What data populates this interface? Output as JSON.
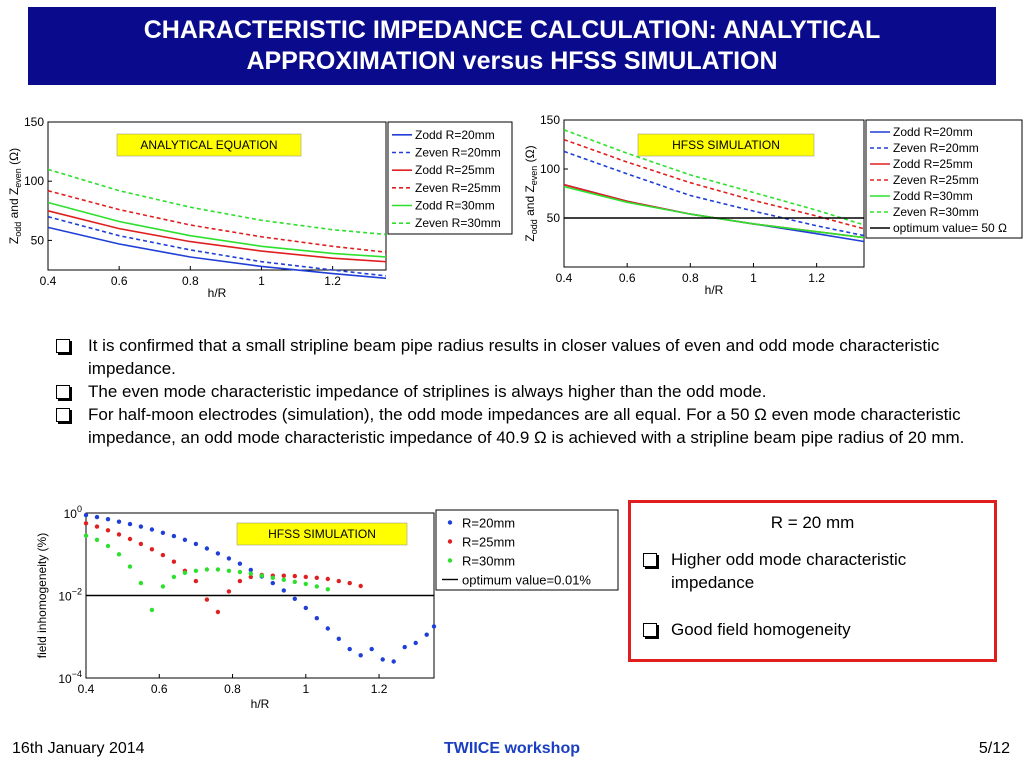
{
  "header": {
    "title_line1": "CHARACTERISTIC IMPEDANCE CALCULATION: ANALYTICAL",
    "title_line2": "APPROXIMATION versus HFSS SIMULATION"
  },
  "bullets": [
    "It is confirmed that a small stripline beam pipe radius results in closer values of even and odd mode characteristic impedance.",
    "The even mode characteristic impedance of striplines is always higher than the odd mode.",
    "For half-moon electrodes (simulation), the odd mode impedances are all equal. For a 50 Ω even mode characteristic impedance, an odd mode characteristic impedance of 40.9 Ω is achieved with a stripline beam pipe radius of 20 mm."
  ],
  "summary_box": {
    "heading": "R = 20 mm",
    "items": [
      "Higher odd mode characteristic impedance",
      "Good field homogeneity"
    ]
  },
  "footer": {
    "date": "16th January 2014",
    "event": "TWIICE workshop",
    "page": "5/12"
  },
  "colors": {
    "title_bg": "#0a0a8c",
    "blue": "#1f3fd6",
    "red": "#e02020",
    "green": "#2ee02e",
    "box_border": "#e01e1e",
    "footer_event": "#1a3ec0"
  },
  "chart_data": [
    {
      "type": "line",
      "annotation": "ANALYTICAL EQUATION",
      "xlabel": "h/R",
      "ylabel_main": "Z",
      "ylabel_sub1": "odd",
      "ylabel_and": " and Z",
      "ylabel_sub2": "even",
      "ylabel_unit": " (Ω)",
      "xlim": [
        0.4,
        1.35
      ],
      "ylim": [
        25,
        150
      ],
      "xticks": [
        0.4,
        0.6,
        0.8,
        1,
        1.2
      ],
      "xtick_labels": [
        "0.4",
        "0.6",
        "0.8",
        "1",
        "1.2"
      ],
      "yticks": [
        50,
        100,
        150
      ],
      "ytick_labels": [
        "50",
        "100",
        "150"
      ],
      "legend": "right",
      "series": [
        {
          "name": "Zodd R=20mm",
          "color": "#1f3fd6",
          "dash": false,
          "x": [
            0.4,
            0.6,
            0.8,
            1.0,
            1.2,
            1.35
          ],
          "y": [
            61,
            47,
            36,
            28,
            22,
            18
          ]
        },
        {
          "name": "Zeven R=20mm",
          "color": "#1f3fd6",
          "dash": true,
          "x": [
            0.4,
            0.6,
            0.8,
            1.0,
            1.2,
            1.35
          ],
          "y": [
            70,
            54,
            42,
            32,
            25,
            20
          ]
        },
        {
          "name": "Zodd R=25mm",
          "color": "#e02020",
          "dash": false,
          "x": [
            0.4,
            0.6,
            0.8,
            1.0,
            1.2,
            1.35
          ],
          "y": [
            75,
            60,
            49,
            41,
            35,
            32
          ]
        },
        {
          "name": "Zeven R=25mm",
          "color": "#e02020",
          "dash": true,
          "x": [
            0.4,
            0.6,
            0.8,
            1.0,
            1.2,
            1.35
          ],
          "y": [
            92,
            76,
            63,
            53,
            45,
            40
          ]
        },
        {
          "name": "Zodd R=30mm",
          "color": "#2ee02e",
          "dash": false,
          "x": [
            0.4,
            0.6,
            0.8,
            1.0,
            1.2,
            1.35
          ],
          "y": [
            82,
            66,
            54,
            45,
            39,
            36
          ]
        },
        {
          "name": "Zeven R=30mm",
          "color": "#2ee02e",
          "dash": true,
          "x": [
            0.4,
            0.6,
            0.8,
            1.0,
            1.2,
            1.35
          ],
          "y": [
            110,
            92,
            78,
            67,
            59,
            55
          ]
        }
      ]
    },
    {
      "type": "line",
      "annotation": "HFSS SIMULATION",
      "xlabel": "h/R",
      "ylabel_main": "Z",
      "ylabel_sub1": "odd",
      "ylabel_and": " and Z",
      "ylabel_sub2": "even",
      "ylabel_unit": " (Ω)",
      "xlim": [
        0.4,
        1.35
      ],
      "ylim": [
        0,
        150
      ],
      "xticks": [
        0.4,
        0.6,
        0.8,
        1,
        1.2
      ],
      "xtick_labels": [
        "0.4",
        "0.6",
        "0.8",
        "1",
        "1.2"
      ],
      "yticks": [
        0,
        50,
        100,
        150
      ],
      "ytick_labels": [
        "",
        "50",
        "100",
        "150"
      ],
      "legend": "right",
      "series": [
        {
          "name": "Zodd R=20mm",
          "color": "#1f3fd6",
          "dash": false,
          "x": [
            0.4,
            0.6,
            0.8,
            1.0,
            1.2,
            1.35
          ],
          "y": [
            84,
            67,
            54,
            44,
            34,
            26
          ]
        },
        {
          "name": "Zeven R=20mm",
          "color": "#1f3fd6",
          "dash": true,
          "x": [
            0.4,
            0.6,
            0.8,
            1.0,
            1.2,
            1.35
          ],
          "y": [
            118,
            95,
            73,
            57,
            42,
            32
          ]
        },
        {
          "name": "Zodd R=25mm",
          "color": "#e02020",
          "dash": false,
          "x": [
            0.4,
            0.6,
            0.8,
            1.0,
            1.2,
            1.35
          ],
          "y": [
            84,
            67,
            54,
            44,
            36,
            30
          ]
        },
        {
          "name": "Zeven R=25mm",
          "color": "#e02020",
          "dash": true,
          "x": [
            0.4,
            0.6,
            0.8,
            1.0,
            1.2,
            1.35
          ],
          "y": [
            130,
            107,
            86,
            68,
            52,
            39
          ]
        },
        {
          "name": "Zodd R=30mm",
          "color": "#2ee02e",
          "dash": false,
          "x": [
            0.4,
            0.6,
            0.8,
            1.0,
            1.2,
            1.35
          ],
          "y": [
            82,
            66,
            54,
            44,
            36,
            30
          ]
        },
        {
          "name": "Zeven R=30mm",
          "color": "#2ee02e",
          "dash": true,
          "x": [
            0.4,
            0.6,
            0.8,
            1.0,
            1.2,
            1.35
          ],
          "y": [
            140,
            116,
            94,
            76,
            58,
            43
          ]
        },
        {
          "name": "optimum value= 50 Ω",
          "color": "#000000",
          "dash": false,
          "x": [
            0.4,
            1.35
          ],
          "y": [
            50,
            50
          ]
        }
      ]
    },
    {
      "type": "scatter",
      "annotation": "HFSS SIMULATION",
      "xlabel": "h/R",
      "ylabel": "field inhomogeneity (%)",
      "xlim": [
        0.4,
        1.35
      ],
      "ylog_lim": [
        -4,
        0
      ],
      "xticks": [
        0.4,
        0.6,
        0.8,
        1,
        1.2
      ],
      "xtick_labels": [
        "0.4",
        "0.6",
        "0.8",
        "1",
        "1.2"
      ],
      "yticks_log": [
        0,
        -2,
        -4
      ],
      "ytick_base": "10",
      "ytick_exp": [
        "0",
        "−2",
        "−4"
      ],
      "legend": "right",
      "series": [
        {
          "name": "R=20mm",
          "color": "#1f3fd6",
          "marker": "dot",
          "x": [
            0.4,
            0.43,
            0.46,
            0.49,
            0.52,
            0.55,
            0.58,
            0.61,
            0.64,
            0.67,
            0.7,
            0.73,
            0.76,
            0.79,
            0.82,
            0.85,
            0.88,
            0.91,
            0.94,
            0.97,
            1.0,
            1.03,
            1.06,
            1.09,
            1.12,
            1.15,
            1.18,
            1.21,
            1.24,
            1.27,
            1.3,
            1.33,
            1.35
          ],
          "log10y": [
            -0.05,
            -0.1,
            -0.15,
            -0.21,
            -0.27,
            -0.33,
            -0.4,
            -0.48,
            -0.56,
            -0.65,
            -0.75,
            -0.86,
            -0.98,
            -1.1,
            -1.23,
            -1.38,
            -1.54,
            -1.7,
            -1.88,
            -2.08,
            -2.3,
            -2.55,
            -2.8,
            -3.05,
            -3.3,
            -3.45,
            -3.3,
            -3.55,
            -3.6,
            -3.25,
            -3.15,
            -2.95,
            -2.75
          ]
        },
        {
          "name": "R=25mm",
          "color": "#e02020",
          "marker": "dot",
          "x": [
            0.4,
            0.43,
            0.46,
            0.49,
            0.52,
            0.55,
            0.58,
            0.61,
            0.64,
            0.67,
            0.7,
            0.73,
            0.76,
            0.79,
            0.82,
            0.85,
            0.88,
            0.91,
            0.94,
            0.97,
            1.0,
            1.03,
            1.06,
            1.09,
            1.12,
            1.15
          ],
          "log10y": [
            -0.25,
            -0.33,
            -0.42,
            -0.52,
            -0.63,
            -0.75,
            -0.88,
            -1.02,
            -1.18,
            -1.4,
            -1.65,
            -2.1,
            -2.4,
            -1.9,
            -1.65,
            -1.55,
            -1.5,
            -1.52,
            -1.52,
            -1.53,
            -1.55,
            -1.57,
            -1.6,
            -1.65,
            -1.7,
            -1.77
          ]
        },
        {
          "name": "R=30mm",
          "color": "#2ee02e",
          "marker": "dot",
          "x": [
            0.4,
            0.43,
            0.46,
            0.49,
            0.52,
            0.55,
            0.58,
            0.61,
            0.64,
            0.67,
            0.7,
            0.73,
            0.76,
            0.79,
            0.82,
            0.85,
            0.88,
            0.91,
            0.94,
            0.97,
            1.0,
            1.03,
            1.06
          ],
          "log10y": [
            -0.55,
            -0.65,
            -0.8,
            -1.0,
            -1.3,
            -1.7,
            -2.35,
            -1.78,
            -1.55,
            -1.45,
            -1.4,
            -1.37,
            -1.37,
            -1.4,
            -1.43,
            -1.47,
            -1.52,
            -1.57,
            -1.62,
            -1.67,
            -1.72,
            -1.78,
            -1.85
          ]
        },
        {
          "name": "optimum value=0.01%",
          "color": "#000000",
          "marker": "line",
          "x": [
            0.4,
            1.35
          ],
          "log10y": [
            -2,
            -2
          ]
        }
      ]
    }
  ]
}
